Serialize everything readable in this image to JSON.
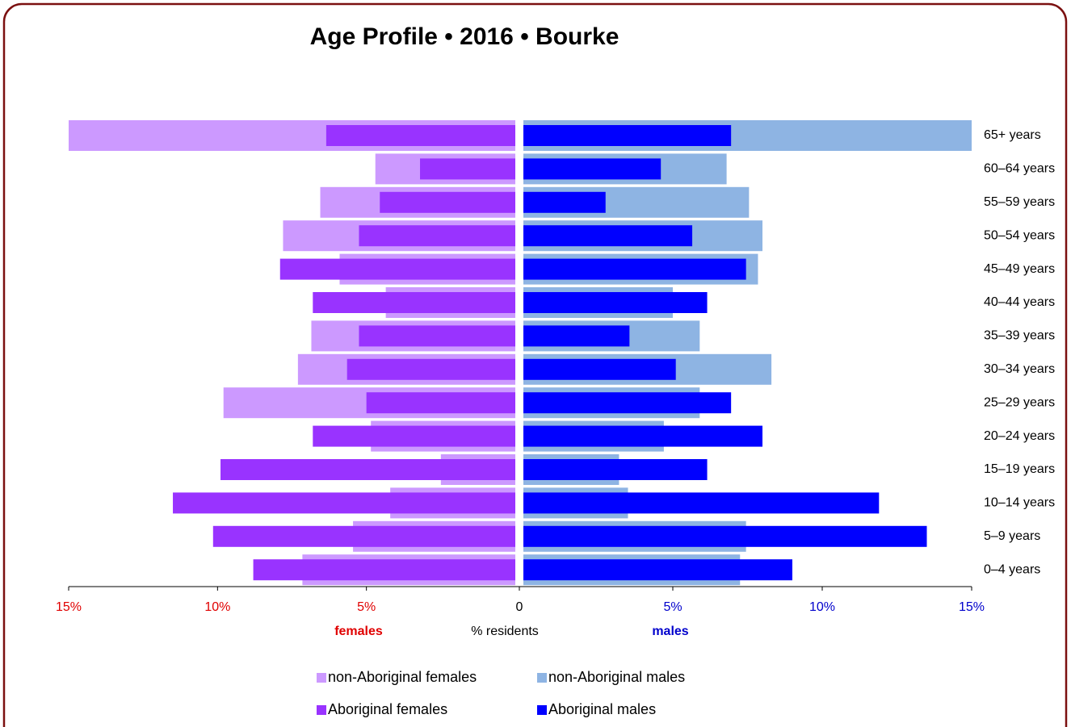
{
  "chart_data": {
    "type": "pyramid",
    "title": "Age Profile  •  2016  •  Bourke",
    "left_label": "females",
    "right_label": "males",
    "x_label": "% residents",
    "left_color": "#e00000",
    "right_color": "#0000cc",
    "categories": [
      "65+ years",
      "60–64 years",
      "55–59 years",
      "50–54 years",
      "45–49 years",
      "40–44 years",
      "35–39 years",
      "30–34 years",
      "25–29 years",
      "20–24 years",
      "15–19 years",
      "10–14 years",
      "5–9 years",
      "0–4 years"
    ],
    "xlim": [
      0,
      15
    ],
    "xticks_left": [
      {
        "value": 15,
        "label": "15%"
      },
      {
        "value": 10,
        "label": "10%"
      },
      {
        "value": 5,
        "label": "5%"
      },
      0
    ],
    "xticks_right": [
      {
        "value": 5,
        "label": "5%"
      },
      {
        "value": 10,
        "label": "10%"
      },
      {
        "value": 15,
        "label": "15%"
      }
    ],
    "series": [
      {
        "name": "non-Aboriginal females",
        "color": "#cc99ff",
        "side": "left",
        "width": "wide",
        "values": [
          15.0,
          4.7,
          6.55,
          7.8,
          5.9,
          4.35,
          6.85,
          7.3,
          9.8,
          4.85,
          2.5,
          4.2,
          5.45,
          7.15
        ]
      },
      {
        "name": "non-Aboriginal males",
        "color": "#8eb4e3",
        "side": "right",
        "width": "wide",
        "values": [
          15.0,
          6.8,
          7.55,
          8.0,
          7.85,
          5.0,
          5.9,
          8.3,
          5.9,
          4.7,
          3.2,
          3.5,
          7.45,
          7.25
        ]
      },
      {
        "name": "Aboriginal females",
        "color": "#9933ff",
        "side": "left",
        "width": "narrow",
        "values": [
          6.35,
          3.2,
          4.55,
          5.25,
          7.9,
          6.8,
          5.25,
          5.65,
          5.0,
          6.8,
          9.9,
          11.5,
          10.15,
          8.8
        ]
      },
      {
        "name": "Aboriginal males",
        "color": "#0000ff",
        "side": "right",
        "width": "narrow",
        "values": [
          6.95,
          4.6,
          2.75,
          5.65,
          7.45,
          6.15,
          3.55,
          5.1,
          6.95,
          8.0,
          6.15,
          11.9,
          13.5,
          9.0
        ]
      }
    ]
  }
}
